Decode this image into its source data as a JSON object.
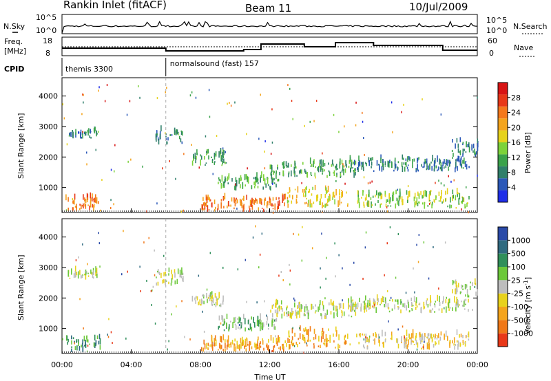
{
  "header": {
    "title": "Rankin Inlet (fitACF)",
    "beam": "Beam 11",
    "date": "10/Jul/2009"
  },
  "top_panels": {
    "nsky_label": "N.Sky",
    "nsearch_label": "N.Search",
    "freq_label_1": "Freq.",
    "freq_label_2": "[MHz]",
    "nave_label": "Nave",
    "cpid_label": "CPID",
    "nsky_ticks": [
      "10^5",
      "10^0"
    ],
    "nsearch_ticks": [
      "10^5",
      "10^0"
    ],
    "freq_ticks": [
      "18",
      "8"
    ],
    "nave_ticks": [
      "60",
      "0"
    ],
    "cpid_segments": [
      {
        "start": 0,
        "end": 6,
        "label": "themis 3300"
      },
      {
        "start": 6,
        "end": 24,
        "label": "normalsound (fast) 157"
      }
    ]
  },
  "colorbars": {
    "power": {
      "label": "Power [dB]",
      "ticks": [
        "4",
        "8",
        "12",
        "16",
        "20",
        "24",
        "28"
      ],
      "colors": [
        "#1f2ee8",
        "#2a58b8",
        "#2f7f6a",
        "#3aa24a",
        "#7cd23a",
        "#e6d21c",
        "#f4a41c",
        "#f4781c",
        "#e83818",
        "#d81414"
      ]
    },
    "velocity": {
      "label": "Velocity [m s-1]",
      "label_main": "Velocity [m s",
      "label_sup": "-1",
      "label_end": "]",
      "ticks": [
        "1000",
        "500",
        "100",
        "25",
        "-25",
        "-100",
        "-500",
        "-1000"
      ],
      "colors": [
        "#2a4aa8",
        "#2f6a80",
        "#2f8f5a",
        "#6cc83a",
        "#bdbdbd",
        "#e8d21c",
        "#f4a41c",
        "#f07818",
        "#e83818"
      ]
    }
  },
  "chart_data": [
    {
      "type": "heatmap",
      "name": "power",
      "ylabel": "Slant Range [km]",
      "xlabel": "",
      "xlim": [
        0,
        24
      ],
      "ylim": [
        180,
        4600
      ],
      "xticks": [
        "00:00",
        "04:00",
        "08:00",
        "12:00",
        "16:00",
        "20:00",
        "00:00"
      ],
      "yticks": [
        1000,
        2000,
        3000,
        4000
      ],
      "blobs": [
        {
          "t0": 0.2,
          "t1": 2.2,
          "r0": 200,
          "r1": 850,
          "level": 7
        },
        {
          "t0": 0.3,
          "t1": 2.0,
          "r0": 2600,
          "r1": 2950,
          "level": 2
        },
        {
          "t0": 5.4,
          "t1": 7.0,
          "r0": 2400,
          "r1": 3050,
          "level": 2
        },
        {
          "t0": 7.5,
          "t1": 9.5,
          "r0": 1700,
          "r1": 2300,
          "level": 3
        },
        {
          "t0": 8.0,
          "t1": 13.0,
          "r0": 200,
          "r1": 800,
          "level": 7
        },
        {
          "t0": 9.0,
          "t1": 12.5,
          "r0": 900,
          "r1": 1500,
          "level": 3
        },
        {
          "t0": 12.0,
          "t1": 17.0,
          "r0": 1300,
          "r1": 2000,
          "level": 3
        },
        {
          "t0": 13.0,
          "t1": 16.5,
          "r0": 300,
          "r1": 1200,
          "level": 5
        },
        {
          "t0": 16.5,
          "t1": 23.5,
          "r0": 1500,
          "r1": 2100,
          "level": 2
        },
        {
          "t0": 17.0,
          "t1": 23.5,
          "r0": 300,
          "r1": 1000,
          "level": 4
        },
        {
          "t0": 22.5,
          "t1": 24.0,
          "r0": 2000,
          "r1": 2700,
          "level": 2
        }
      ]
    },
    {
      "type": "heatmap",
      "name": "velocity",
      "ylabel": "Slant Range [km]",
      "xlabel": "Time UT",
      "xlim": [
        0,
        24
      ],
      "ylim": [
        180,
        4600
      ],
      "xticks": [
        "00:00",
        "04:00",
        "08:00",
        "12:00",
        "16:00",
        "20:00",
        "00:00"
      ],
      "yticks": [
        1000,
        2000,
        3000,
        4000
      ],
      "blobs": [
        {
          "t0": 0.2,
          "t1": 2.2,
          "r0": 200,
          "r1": 850,
          "level": 2
        },
        {
          "t0": 0.3,
          "t1": 2.0,
          "r0": 2600,
          "r1": 2950,
          "level": 4
        },
        {
          "t0": 5.4,
          "t1": 7.0,
          "r0": 2400,
          "r1": 3050,
          "level": 4
        },
        {
          "t0": 7.5,
          "t1": 9.5,
          "r0": 1700,
          "r1": 2300,
          "level": 4
        },
        {
          "t0": 8.0,
          "t1": 13.0,
          "r0": 200,
          "r1": 800,
          "level": 6
        },
        {
          "t0": 9.0,
          "t1": 12.5,
          "r0": 900,
          "r1": 1500,
          "level": 3
        },
        {
          "t0": 12.0,
          "t1": 17.0,
          "r0": 1300,
          "r1": 2000,
          "level": 4
        },
        {
          "t0": 13.0,
          "t1": 16.5,
          "r0": 300,
          "r1": 1200,
          "level": 6
        },
        {
          "t0": 16.5,
          "t1": 23.5,
          "r0": 1500,
          "r1": 2100,
          "level": 4
        },
        {
          "t0": 17.0,
          "t1": 23.5,
          "r0": 300,
          "r1": 1000,
          "level": 5
        },
        {
          "t0": 22.5,
          "t1": 24.0,
          "r0": 2000,
          "r1": 2700,
          "level": 4
        }
      ]
    }
  ]
}
